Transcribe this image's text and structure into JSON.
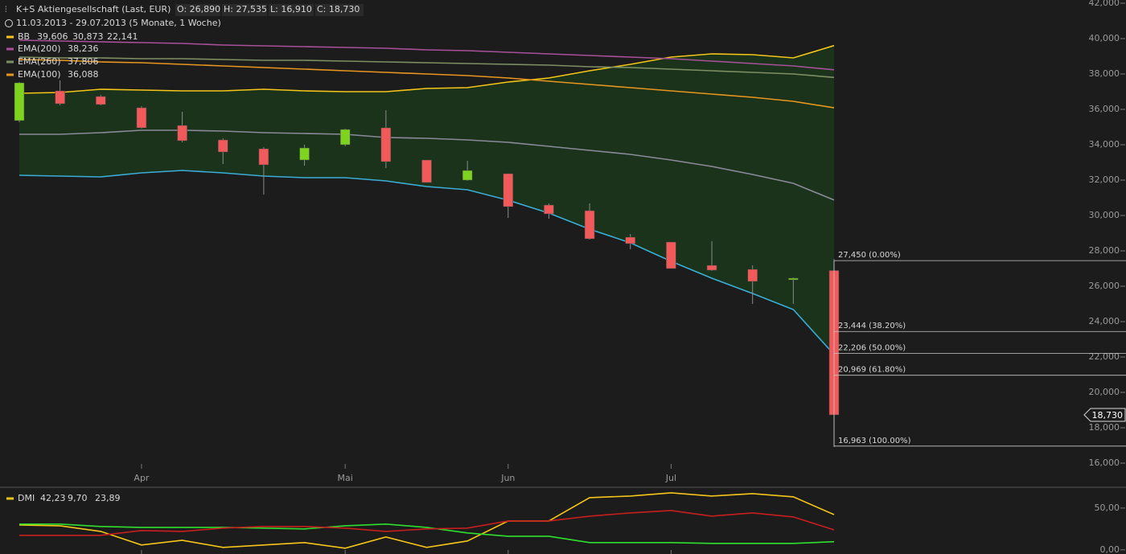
{
  "header": {
    "title": "K+S Aktiengesellschaft (Last, EUR)",
    "ohlc": [
      "O: 26,890",
      "H: 27,535",
      "L: 16,910",
      "C: 18,730"
    ],
    "period": "11.03.2013 - 29.07.2013 (5 Monate, 1 Woche)"
  },
  "chart_data": [
    {
      "type": "candlestick",
      "categories": [
        null,
        null,
        null,
        "Apr",
        null,
        null,
        null,
        null,
        "Mai",
        null,
        null,
        null,
        "Jun",
        null,
        null,
        null,
        "Jul",
        null,
        null,
        null,
        null
      ],
      "open": [
        35364,
        37045,
        36727,
        36091,
        35091,
        34273,
        33773,
        33136,
        34000,
        34955,
        33136,
        32000,
        32364,
        30591,
        30273,
        28773,
        28500,
        27182,
        26955,
        26364,
        26890
      ],
      "high": [
        37545,
        37636,
        36818,
        36182,
        35864,
        34364,
        33864,
        34000,
        34909,
        35955,
        33136,
        33091,
        32364,
        30682,
        30682,
        28955,
        28500,
        28545,
        27182,
        26500,
        27535
      ],
      "low": [
        35270,
        36227,
        36227,
        34909,
        34136,
        32909,
        31182,
        32818,
        33909,
        32682,
        31864,
        31955,
        29864,
        29818,
        28636,
        28091,
        27000,
        26864,
        25000,
        25000,
        16910
      ],
      "close": [
        37500,
        36318,
        36273,
        34955,
        34227,
        33591,
        32864,
        33818,
        34864,
        33045,
        31864,
        32545,
        30500,
        30091,
        28682,
        28409,
        27000,
        26909,
        26273,
        26455,
        18730
      ],
      "up_color": "#7ed321",
      "down_color": "#f05a5a",
      "last_label": "18,730",
      "bollinger": {
        "name": "BB",
        "fill": "#1b361b",
        "series": [
          {
            "color": "#f5c518",
            "last_label": "39,606",
            "values": [
              36909,
              36955,
              37136,
              37091,
              37045,
              37045,
              37136,
              37045,
              37000,
              37000,
              37182,
              37227,
              37545,
              37773,
              38182,
              38545,
              38955,
              39136,
              39091,
              38909,
              39606
            ]
          },
          {
            "color": "#8a8a9a",
            "last_label": "30,873",
            "values": [
              34591,
              34591,
              34682,
              34818,
              34818,
              34773,
              34682,
              34636,
              34591,
              34409,
              34364,
              34273,
              34136,
              33909,
              33682,
              33455,
              33136,
              32773,
              32318,
              31818,
              30873
            ]
          },
          {
            "color": "#3aaed8",
            "last_label": "22,141",
            "values": [
              32273,
              32227,
              32182,
              32409,
              32545,
              32409,
              32227,
              32136,
              32136,
              31955,
              31636,
              31455,
              30864,
              30136,
              29227,
              28455,
              27409,
              26455,
              25591,
              24682,
              22141
            ]
          }
        ]
      },
      "series": [
        {
          "name": "EMA(200)",
          "color": "#a8509a",
          "last_label": "38,236",
          "values": [
            39909,
            39864,
            39818,
            39773,
            39727,
            39636,
            39591,
            39545,
            39500,
            39455,
            39364,
            39318,
            39227,
            39136,
            39045,
            38955,
            38864,
            38727,
            38591,
            38455,
            38236
          ]
        },
        {
          "name": "EMA(260)",
          "color": "#7e8f63",
          "last_label": "37,806",
          "values": [
            38955,
            38909,
            38909,
            38864,
            38864,
            38818,
            38773,
            38773,
            38727,
            38682,
            38636,
            38591,
            38545,
            38500,
            38409,
            38364,
            38273,
            38182,
            38091,
            38000,
            37806
          ]
        },
        {
          "name": "EMA(100)",
          "color": "#e8961e",
          "last_label": "36,088",
          "values": [
            38818,
            38773,
            38682,
            38636,
            38545,
            38455,
            38364,
            38273,
            38182,
            38091,
            38000,
            37909,
            37773,
            37591,
            37409,
            37227,
            37045,
            36864,
            36682,
            36455,
            36088
          ]
        }
      ],
      "fib_levels": [
        {
          "value": 27450,
          "label": "27,450 (0.00%)"
        },
        {
          "value": 23444,
          "label": "23,444 (38.20%)"
        },
        {
          "value": 22206,
          "label": "22,206 (50.00%)"
        },
        {
          "value": 20969,
          "label": "20,969 (61.80%)"
        },
        {
          "value": 16963,
          "label": "16,963 (100.00%)"
        }
      ],
      "ylim": [
        16000,
        42000
      ],
      "yticks": [
        {
          "value": 16000,
          "label": "16,000"
        },
        {
          "value": 18000,
          "label": "18,000"
        },
        {
          "value": 20000,
          "label": "20,000"
        },
        {
          "value": 22000,
          "label": "22,000"
        },
        {
          "value": 24000,
          "label": "24,000"
        },
        {
          "value": 26000,
          "label": "26,000"
        },
        {
          "value": 28000,
          "label": "28,000"
        },
        {
          "value": 30000,
          "label": "30,000"
        },
        {
          "value": 32000,
          "label": "32,000"
        },
        {
          "value": 34000,
          "label": "34,000"
        },
        {
          "value": 36000,
          "label": "36,000"
        },
        {
          "value": 38000,
          "label": "38,000"
        },
        {
          "value": 40000,
          "label": "40,000"
        },
        {
          "value": 42000,
          "label": "42,000"
        }
      ]
    },
    {
      "type": "line",
      "name": "DMI",
      "series": [
        {
          "color": "#f5c518",
          "last_label": "42,23",
          "values": [
            29.8,
            28.8,
            22.1,
            5.8,
            11.5,
            2.9,
            5.8,
            8.7,
            1.9,
            15.4,
            2.9,
            10.6,
            34.6,
            34.6,
            62.5,
            64.4,
            68.3,
            64.4,
            67.3,
            63.5,
            42.23
          ]
        },
        {
          "color": "#2ee02e",
          "last_label": "9,70",
          "values": [
            30.8,
            30.8,
            27.9,
            26.9,
            26.9,
            26.9,
            26.0,
            25.0,
            28.8,
            30.8,
            26.9,
            20.2,
            16.3,
            16.3,
            8.7,
            8.7,
            8.7,
            7.7,
            7.7,
            7.7,
            9.7
          ]
        },
        {
          "color": "#c81e1e",
          "last_label": "23,89",
          "values": [
            17.3,
            17.3,
            17.3,
            23.1,
            22.1,
            26.0,
            27.9,
            27.9,
            26.0,
            22.1,
            25.0,
            26.0,
            34.6,
            34.6,
            40.4,
            44.2,
            47.1,
            40.4,
            44.2,
            39.4,
            23.89
          ]
        }
      ],
      "ylim": [
        -5,
        73
      ],
      "yticks": [
        {
          "value": 0,
          "label": "0,00"
        },
        {
          "value": 50,
          "label": "50,00"
        }
      ]
    }
  ]
}
